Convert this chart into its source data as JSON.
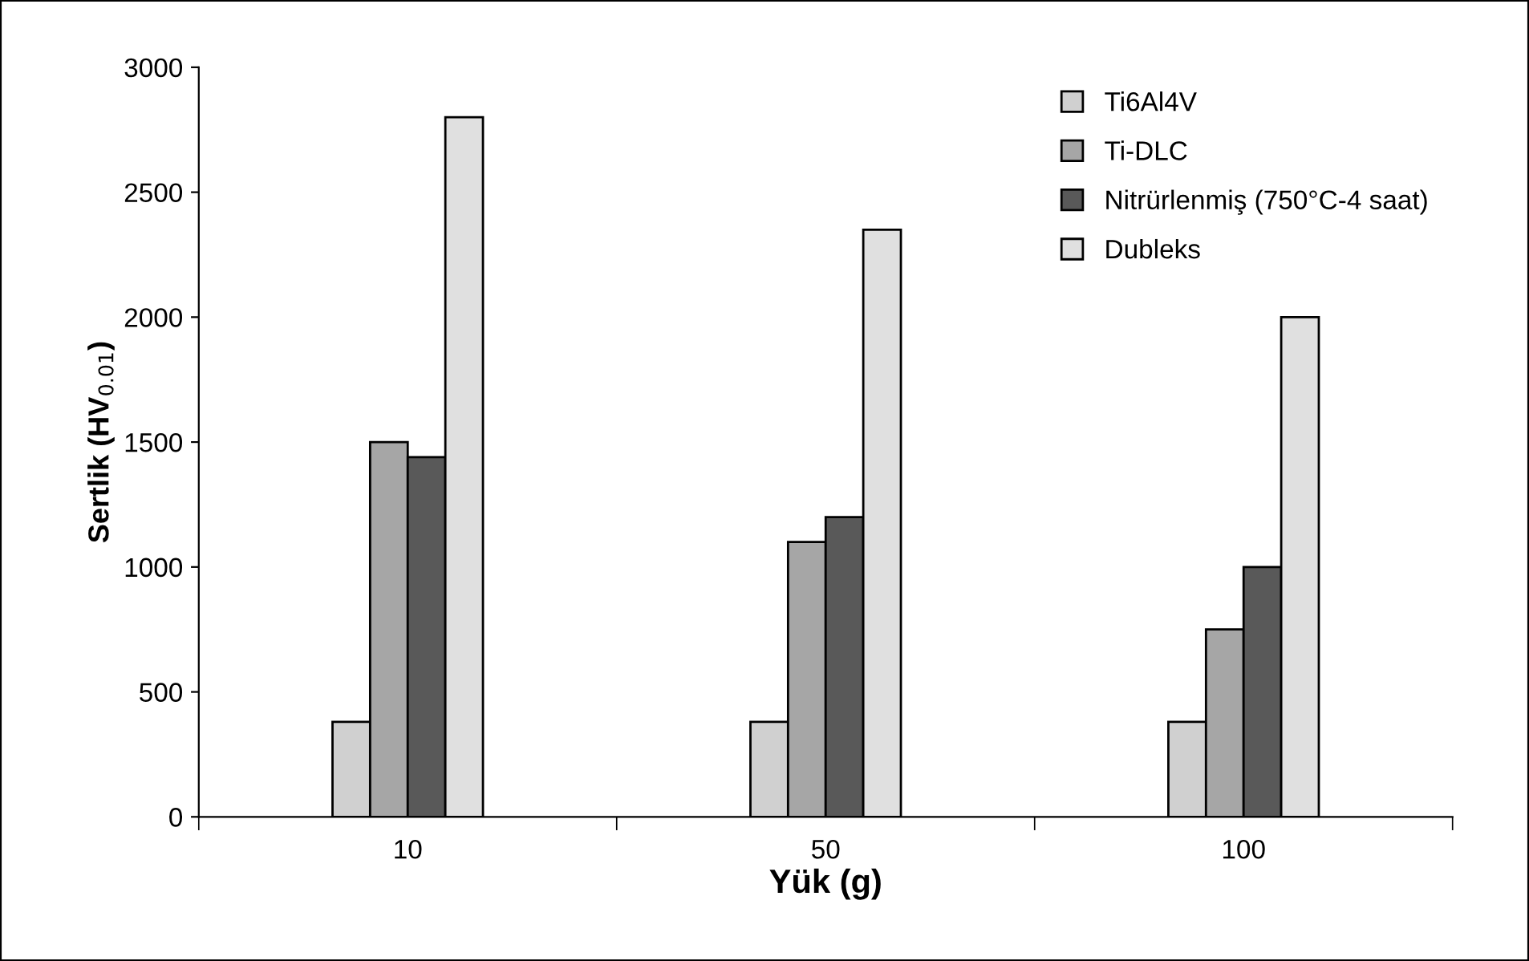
{
  "chart_data": {
    "type": "bar",
    "xlabel": "Yük (g)",
    "ylabel": "Sertlik (HV$_{0.01}$)",
    "categories": [
      "10",
      "50",
      "100"
    ],
    "series": [
      {
        "name": "Ti6Al4V",
        "color": "#d0d0d0",
        "values": [
          380,
          380,
          380
        ]
      },
      {
        "name": "Ti-DLC",
        "color": "#a6a6a6",
        "values": [
          1500,
          1100,
          750
        ]
      },
      {
        "name": "Nitrürlenmiş (750°C-4 saat)",
        "color": "#595959",
        "values": [
          1440,
          1200,
          1000
        ]
      },
      {
        "name": "Dubleks",
        "color": "#e0e0e0",
        "values": [
          2800,
          2350,
          2000
        ]
      }
    ],
    "ylim": [
      0,
      3000
    ],
    "yticks": [
      0,
      500,
      1000,
      1500,
      2000,
      2500,
      3000
    ],
    "grid": false,
    "legend": "top right"
  }
}
